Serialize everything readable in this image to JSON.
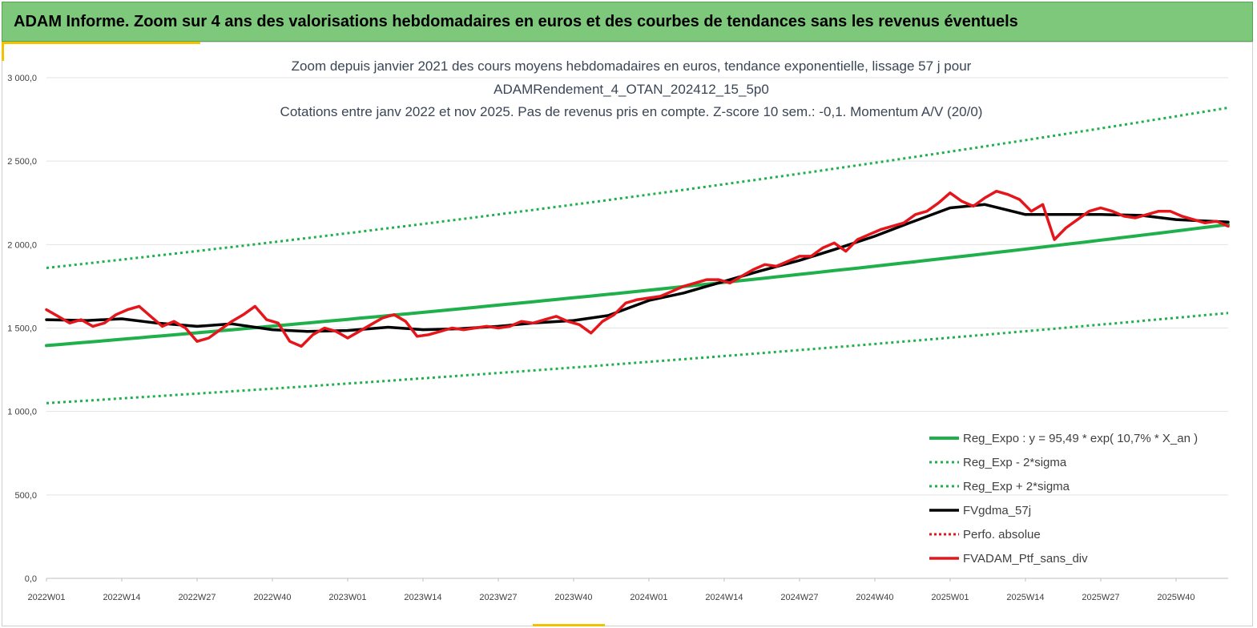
{
  "header": {
    "title": "ADAM Informe. Zoom sur 4 ans des valorisations hebdomadaires en euros et des courbes de tendances sans les revenus éventuels"
  },
  "colors": {
    "header_bg": "#7dc87a",
    "reg": "#1fb04c",
    "ptf": "#e5161b",
    "mma": "#000000",
    "grid": "#e3e3e3",
    "accent": "#f2c200"
  },
  "chart_data": {
    "type": "line",
    "title": [
      "Zoom depuis janvier 2021 des cours moyens hebdomadaires  en euros, tendance exponentielle, lissage 57 j pour",
      "ADAMRendement_4_OTAN_202412_15_5p0",
      "Cotations  entre janv 2022 et nov 2025. Pas de revenus pris en compte. Z-score 10 sem.: -0,1. Momentum A/V (20/0)"
    ],
    "xlabel": "",
    "ylabel": "",
    "ylim": [
      0,
      3000
    ],
    "yticks": [
      0,
      500,
      1000,
      1500,
      2000,
      2500,
      3000
    ],
    "ytick_labels": [
      "0,0",
      "500,0",
      "1 000,0",
      "1 500,0",
      "2 000,0",
      "2 500,0",
      "3 000,0"
    ],
    "xlim": [
      1,
      205
    ],
    "xticks": [
      1,
      14,
      27,
      40,
      53,
      66,
      79,
      92,
      105,
      118,
      131,
      144,
      157,
      170,
      183,
      196
    ],
    "xtick_labels": [
      "2022W01",
      "2022W14",
      "2022W27",
      "2022W40",
      "2023W01",
      "2023W14",
      "2023W27",
      "2023W40",
      "2024W01",
      "2024W14",
      "2024W27",
      "2024W40",
      "2025W01",
      "2025W14",
      "2025W27",
      "2025W40"
    ],
    "legend": [
      "Reg_Expo : y = 95,49 * exp( 10,7% *  X_an )",
      "Reg_Exp - 2*sigma",
      "Reg_Exp + 2*sigma",
      "FVgdma_57j",
      "Perfo. absolue",
      "FVADAM_Ptf_sans_div"
    ],
    "legend_position": "bottom-right",
    "series": [
      {
        "name": "Reg_Expo : y = 95,49 * exp( 10,7% *  X_an )",
        "style": "solid-green",
        "x": [
          1,
          105,
          205
        ],
        "values": [
          1395,
          1730,
          2120
        ]
      },
      {
        "name": "Reg_Exp - 2*sigma",
        "style": "dotted-green",
        "x": [
          1,
          105,
          205
        ],
        "values": [
          1050,
          1300,
          1590
        ]
      },
      {
        "name": "Reg_Exp + 2*sigma",
        "style": "dotted-green",
        "x": [
          1,
          105,
          205
        ],
        "values": [
          1860,
          2310,
          2820
        ]
      },
      {
        "name": "FVgdma_57j",
        "style": "solid-black",
        "x": [
          1,
          8,
          14,
          20,
          27,
          33,
          40,
          46,
          53,
          60,
          66,
          72,
          79,
          85,
          92,
          98,
          105,
          111,
          118,
          124,
          131,
          137,
          144,
          150,
          157,
          163,
          170,
          176,
          183,
          190,
          196,
          205
        ],
        "values": [
          1550,
          1545,
          1555,
          1530,
          1510,
          1525,
          1490,
          1480,
          1485,
          1505,
          1490,
          1495,
          1510,
          1530,
          1545,
          1575,
          1665,
          1710,
          1780,
          1840,
          1905,
          1970,
          2050,
          2130,
          2220,
          2240,
          2180,
          2180,
          2180,
          2175,
          2150,
          2135
        ]
      },
      {
        "name": "Perfo. absolue",
        "style": "dotted-red",
        "x": [],
        "values": []
      },
      {
        "name": "FVADAM_Ptf_sans_div",
        "style": "solid-red",
        "x": [
          1,
          3,
          5,
          7,
          9,
          11,
          13,
          15,
          17,
          19,
          21,
          23,
          25,
          27,
          29,
          31,
          33,
          35,
          37,
          39,
          41,
          43,
          45,
          47,
          49,
          51,
          53,
          55,
          57,
          59,
          61,
          63,
          65,
          67,
          69,
          71,
          73,
          75,
          77,
          79,
          81,
          83,
          85,
          87,
          89,
          91,
          93,
          95,
          97,
          99,
          101,
          103,
          105,
          107,
          109,
          111,
          113,
          115,
          117,
          119,
          121,
          123,
          125,
          127,
          129,
          131,
          133,
          135,
          137,
          139,
          141,
          143,
          145,
          147,
          149,
          151,
          153,
          155,
          157,
          159,
          161,
          163,
          165,
          167,
          169,
          171,
          173,
          175,
          177,
          179,
          181,
          183,
          185,
          187,
          189,
          191,
          193,
          195,
          197,
          199,
          201,
          203,
          205
        ],
        "values": [
          1610,
          1570,
          1530,
          1550,
          1510,
          1530,
          1580,
          1610,
          1630,
          1570,
          1510,
          1540,
          1500,
          1420,
          1440,
          1490,
          1540,
          1580,
          1630,
          1550,
          1530,
          1420,
          1390,
          1460,
          1500,
          1480,
          1440,
          1480,
          1520,
          1560,
          1580,
          1540,
          1450,
          1460,
          1480,
          1500,
          1490,
          1500,
          1510,
          1500,
          1510,
          1540,
          1530,
          1550,
          1570,
          1540,
          1520,
          1470,
          1540,
          1580,
          1650,
          1670,
          1680,
          1690,
          1720,
          1750,
          1770,
          1790,
          1790,
          1770,
          1810,
          1850,
          1880,
          1870,
          1900,
          1930,
          1930,
          1980,
          2010,
          1960,
          2030,
          2060,
          2090,
          2110,
          2130,
          2180,
          2200,
          2250,
          2310,
          2260,
          2230,
          2280,
          2320,
          2300,
          2270,
          2200,
          2240,
          2030,
          2100,
          2150,
          2200,
          2220,
          2200,
          2170,
          2160,
          2180,
          2200,
          2200,
          2170,
          2150,
          2130,
          2140,
          2110
        ]
      }
    ]
  }
}
